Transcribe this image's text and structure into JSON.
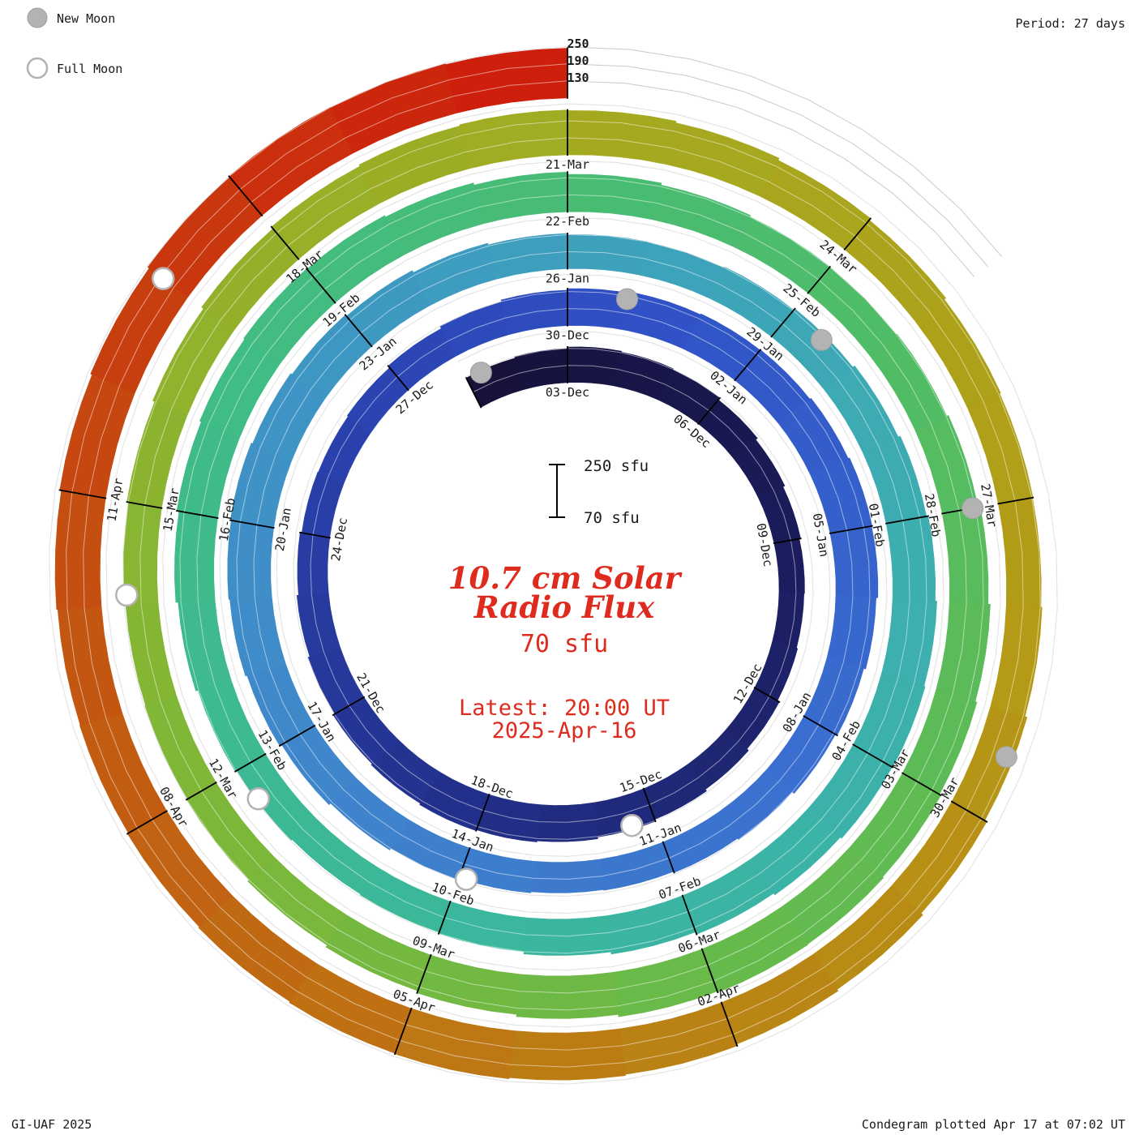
{
  "header": {
    "period_label": "Period: 27 days"
  },
  "legend": {
    "new_moon_label": "New Moon",
    "full_moon_label": "Full Moon"
  },
  "center": {
    "title_line1": "10.7 cm Solar",
    "title_line2": "Radio Flux",
    "baseline_text": "70 sfu",
    "latest_line1": "Latest: 20:00 UT",
    "latest_line2": "2025-Apr-16"
  },
  "scale_bar": {
    "top_label": "250 sfu",
    "bottom_label": "70 sfu"
  },
  "footer": {
    "credit": "GI-UAF 2025",
    "plotted": "Condegram plotted Apr 17 at 07:02 UT"
  },
  "colors": {
    "accent_red": "#de2b1e",
    "moon_gray": "#b3b3b3",
    "grid_gray": "#c9c9c9",
    "label_black": "#1a1a1a"
  },
  "chart_data": {
    "type": "spiral-bar",
    "description": "Condegram: daily 10.7 cm solar radio flux drawn on an outward clockwise spiral, one full turn = 27 days (solar rotation period). Bars rise from a 70 sfu baseline; gray circles mark new moons, open circles mark full moons.",
    "start_date": "2024-12-01",
    "end_date": "2025-04-16",
    "period_days": 27,
    "baseline_sfu": 70,
    "grid_levels_sfu": [
      130,
      190,
      250
    ],
    "unit": "sfu",
    "flux_sfu": [
      185,
      190,
      195,
      192,
      188,
      180,
      172,
      165,
      160,
      158,
      162,
      170,
      178,
      185,
      192,
      198,
      202,
      205,
      200,
      195,
      188,
      182,
      176,
      170,
      168,
      172,
      180,
      188,
      195,
      200,
      205,
      208,
      210,
      215,
      220,
      218,
      212,
      205,
      198,
      190,
      184,
      180,
      178,
      182,
      188,
      196,
      204,
      212,
      218,
      222,
      225,
      220,
      214,
      208,
      200,
      194,
      190,
      188,
      192,
      198,
      206,
      214,
      220,
      226,
      230,
      228,
      222,
      215,
      206,
      198,
      190,
      185,
      182,
      186,
      192,
      200,
      208,
      216,
      222,
      226,
      224,
      218,
      210,
      202,
      195,
      190,
      188,
      192,
      198,
      206,
      214,
      220,
      226,
      230,
      232,
      228,
      220,
      212,
      204,
      196,
      190,
      186,
      184,
      188,
      194,
      202,
      210,
      218,
      224,
      228,
      226,
      220,
      212,
      205,
      198,
      194,
      192,
      196,
      204,
      212,
      220,
      226,
      232,
      236,
      240,
      238,
      234,
      230,
      226,
      224,
      228,
      234,
      240,
      246,
      250,
      248,
      245
    ],
    "date_labels": [
      {
        "d": 2,
        "label": "03-Dec"
      },
      {
        "d": 5,
        "label": "06-Dec"
      },
      {
        "d": 8,
        "label": "09-Dec"
      },
      {
        "d": 11,
        "label": "12-Dec"
      },
      {
        "d": 14,
        "label": "15-Dec"
      },
      {
        "d": 17,
        "label": "18-Dec"
      },
      {
        "d": 20,
        "label": "21-Dec"
      },
      {
        "d": 23,
        "label": "24-Dec"
      },
      {
        "d": 26,
        "label": "27-Dec"
      },
      {
        "d": 29,
        "label": "30-Dec"
      },
      {
        "d": 32,
        "label": "02-Jan"
      },
      {
        "d": 35,
        "label": "05-Jan"
      },
      {
        "d": 38,
        "label": "08-Jan"
      },
      {
        "d": 41,
        "label": "11-Jan"
      },
      {
        "d": 44,
        "label": "14-Jan"
      },
      {
        "d": 47,
        "label": "17-Jan"
      },
      {
        "d": 50,
        "label": "20-Jan"
      },
      {
        "d": 53,
        "label": "23-Jan"
      },
      {
        "d": 56,
        "label": "26-Jan"
      },
      {
        "d": 59,
        "label": "29-Jan"
      },
      {
        "d": 62,
        "label": "01-Feb"
      },
      {
        "d": 65,
        "label": "04-Feb"
      },
      {
        "d": 68,
        "label": "07-Feb"
      },
      {
        "d": 71,
        "label": "10-Feb"
      },
      {
        "d": 74,
        "label": "13-Feb"
      },
      {
        "d": 77,
        "label": "16-Feb"
      },
      {
        "d": 80,
        "label": "19-Feb"
      },
      {
        "d": 83,
        "label": "22-Feb"
      },
      {
        "d": 86,
        "label": "25-Feb"
      },
      {
        "d": 89,
        "label": "28-Feb"
      },
      {
        "d": 92,
        "label": "03-Mar"
      },
      {
        "d": 95,
        "label": "06-Mar"
      },
      {
        "d": 98,
        "label": "09-Mar"
      },
      {
        "d": 101,
        "label": "12-Mar"
      },
      {
        "d": 104,
        "label": "15-Mar"
      },
      {
        "d": 107,
        "label": "18-Mar"
      },
      {
        "d": 110,
        "label": "21-Mar"
      },
      {
        "d": 113,
        "label": "24-Mar"
      },
      {
        "d": 116,
        "label": "27-Mar"
      },
      {
        "d": 119,
        "label": "30-Mar"
      },
      {
        "d": 122,
        "label": "02-Apr"
      },
      {
        "d": 125,
        "label": "05-Apr"
      },
      {
        "d": 128,
        "label": "08-Apr"
      },
      {
        "d": 131,
        "label": "11-Apr"
      }
    ],
    "new_moons": [
      {
        "d": 0.3,
        "label": "01-Dec"
      },
      {
        "d": 29.9,
        "label": "30-Dec"
      },
      {
        "d": 59.5,
        "label": "29-Jan"
      },
      {
        "d": 89.0,
        "label": "28-Feb"
      },
      {
        "d": 118.4,
        "label": "29-Mar"
      }
    ],
    "full_moons": [
      {
        "d": 14.4,
        "label": "15-Dec"
      },
      {
        "d": 43.9,
        "label": "13-Jan"
      },
      {
        "d": 73.6,
        "label": "12-Feb"
      },
      {
        "d": 103.1,
        "label": "14-Mar"
      },
      {
        "d": 133.0,
        "label": "13-Apr"
      }
    ],
    "colormap": [
      [
        0,
        "#16123a"
      ],
      [
        8,
        "#1b1d5e"
      ],
      [
        16,
        "#222e86"
      ],
      [
        24,
        "#2a41ad"
      ],
      [
        30,
        "#3052c6"
      ],
      [
        38,
        "#3a6ed0"
      ],
      [
        46,
        "#3f86cb"
      ],
      [
        54,
        "#3e9cc0"
      ],
      [
        62,
        "#3caeb0"
      ],
      [
        70,
        "#3ab79d"
      ],
      [
        78,
        "#40bc85"
      ],
      [
        86,
        "#4fbc68"
      ],
      [
        94,
        "#66ba4c"
      ],
      [
        102,
        "#84b634"
      ],
      [
        110,
        "#a4aa20"
      ],
      [
        117,
        "#b49a16"
      ],
      [
        124,
        "#bd7714"
      ],
      [
        130,
        "#c44f10"
      ],
      [
        136,
        "#ce1f0c"
      ]
    ]
  }
}
